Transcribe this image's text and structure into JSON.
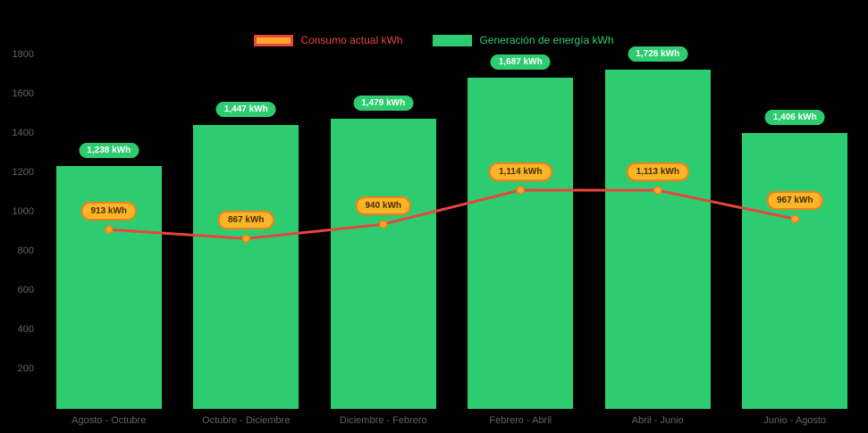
{
  "chart_data": {
    "type": "bar",
    "subtype": "combo-bar-line",
    "categories": [
      "Agosto - Octubre",
      "Octubre - Diciembre",
      "Diciembre - Febrero",
      "Febrero - Abril",
      "Abril - Junio",
      "Junio - Agosto"
    ],
    "series": [
      {
        "name": "Consumo actual kWh",
        "kind": "line",
        "values": [
          913,
          867,
          940,
          1114,
          1113,
          967
        ],
        "labels": [
          "913 kWh",
          "867 kWh",
          "940 kWh",
          "1,114 kWh",
          "1,113 kWh",
          "967 kWh"
        ],
        "color": "#e8453c",
        "marker_color": "#ffa726",
        "marker_stroke": "#f57f17"
      },
      {
        "name": "Generación de energía kWh",
        "kind": "bar",
        "values": [
          1238,
          1447,
          1479,
          1687,
          1726,
          1406
        ],
        "labels": [
          "1,238 kWh",
          "1,447 kWh",
          "1,479 kWh",
          "1,687 kWh",
          "1,726 kWh",
          "1,406 kWh"
        ],
        "color": "#2ecc71"
      }
    ],
    "y_ticks": [
      200,
      400,
      600,
      800,
      1000,
      1200,
      1400,
      1600,
      1800
    ],
    "ylim": [
      0,
      1800
    ],
    "xlabel": "",
    "ylabel": "",
    "title": "",
    "grid": false,
    "legend_position": "top"
  },
  "colors": {
    "background": "#000000",
    "axis_text": "#5d6669",
    "bar_green": "#2ecc71",
    "line_red": "#e8453c",
    "marker_orange": "#ffa726",
    "orange_pill_bg": "#fcb528",
    "orange_pill_border": "#f57f17",
    "green_pill_text": "#ffffff"
  }
}
